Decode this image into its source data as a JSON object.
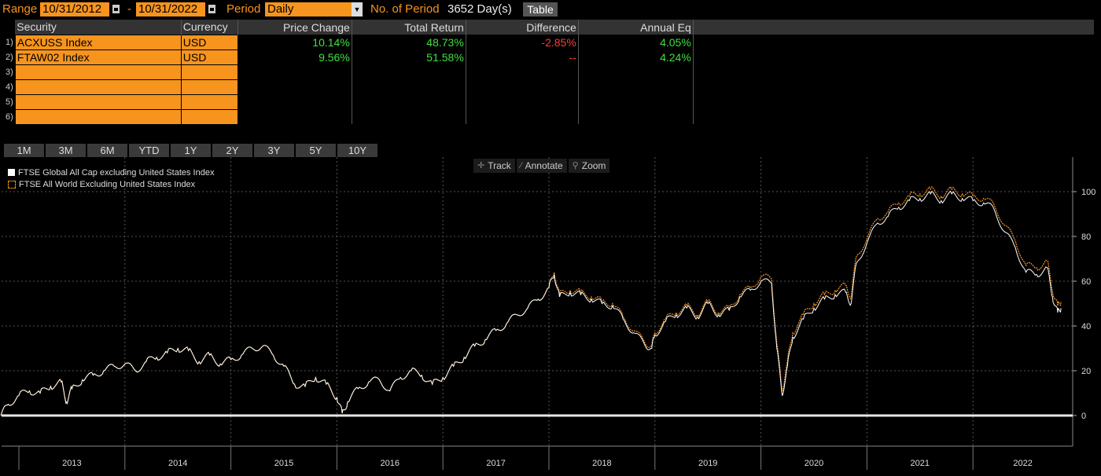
{
  "header": {
    "range_label": "Range",
    "start_date": "10/31/2012",
    "dash": "-",
    "end_date": "10/31/2022",
    "period_label": "Period",
    "period_value": "Daily",
    "num_period_label": "No. of Period",
    "num_period_value": "3652 Day(s)",
    "table_button": "Table"
  },
  "table": {
    "columns": [
      "Security",
      "Currency",
      "Price Change",
      "Total Return",
      "Difference",
      "Annual Eq"
    ],
    "rows": [
      {
        "num": "1)",
        "security": "ACXUSS Index",
        "currency": "USD",
        "price_change": "10.14%",
        "total_return": "48.73%",
        "difference": "-2.85%",
        "annual_eq": "4.05%"
      },
      {
        "num": "2)",
        "security": "FTAW02 Index",
        "currency": "USD",
        "price_change": "9.56%",
        "total_return": "51.58%",
        "difference": "--",
        "annual_eq": "4.24%"
      },
      {
        "num": "3)",
        "security": "",
        "currency": "",
        "price_change": "",
        "total_return": "",
        "difference": "",
        "annual_eq": ""
      },
      {
        "num": "4)",
        "security": "",
        "currency": "",
        "price_change": "",
        "total_return": "",
        "difference": "",
        "annual_eq": ""
      },
      {
        "num": "5)",
        "security": "",
        "currency": "",
        "price_change": "",
        "total_return": "",
        "difference": "",
        "annual_eq": ""
      },
      {
        "num": "6)",
        "security": "",
        "currency": "",
        "price_change": "",
        "total_return": "",
        "difference": "",
        "annual_eq": ""
      }
    ]
  },
  "period_buttons": [
    "1M",
    "3M",
    "6M",
    "YTD",
    "1Y",
    "2Y",
    "3Y",
    "5Y",
    "10Y"
  ],
  "toolbar": {
    "track": "Track",
    "annotate": "Annotate",
    "zoom": "Zoom"
  },
  "colors": {
    "accent": "#f7941d",
    "positive": "#3ee13e",
    "negative": "#ff3a3a",
    "series1": "#ffffff",
    "series2": "#f7941d"
  },
  "chart_data": {
    "type": "line",
    "legend_position": "top-left",
    "grid": true,
    "xlim": [
      2012.83,
      2022.83
    ],
    "ylim": [
      -10,
      110
    ],
    "yticks": [
      0,
      20,
      40,
      60,
      80,
      100
    ],
    "xticks": [
      "2013",
      "2014",
      "2015",
      "2016",
      "2017",
      "2018",
      "2019",
      "2020",
      "2021",
      "2022"
    ],
    "series": [
      {
        "name": "FTSE Global All Cap excluding United States Index",
        "color": "#ffffff",
        "x": [
          2012.83,
          2012.9,
          2013.0,
          2013.1,
          2013.2,
          2013.3,
          2013.4,
          2013.45,
          2013.5,
          2013.6,
          2013.7,
          2013.8,
          2013.9,
          2014.0,
          2014.1,
          2014.2,
          2014.3,
          2014.4,
          2014.5,
          2014.6,
          2014.7,
          2014.8,
          2014.9,
          2015.0,
          2015.1,
          2015.2,
          2015.3,
          2015.4,
          2015.5,
          2015.6,
          2015.7,
          2015.8,
          2015.9,
          2016.0,
          2016.05,
          2016.1,
          2016.2,
          2016.3,
          2016.4,
          2016.5,
          2016.6,
          2016.7,
          2016.8,
          2016.9,
          2017.0,
          2017.1,
          2017.2,
          2017.3,
          2017.4,
          2017.5,
          2017.6,
          2017.7,
          2017.8,
          2017.9,
          2018.0,
          2018.05,
          2018.1,
          2018.2,
          2018.3,
          2018.4,
          2018.5,
          2018.6,
          2018.7,
          2018.8,
          2018.9,
          2018.97,
          2019.0,
          2019.1,
          2019.2,
          2019.3,
          2019.4,
          2019.5,
          2019.6,
          2019.7,
          2019.8,
          2019.9,
          2020.0,
          2020.1,
          2020.15,
          2020.2,
          2020.25,
          2020.3,
          2020.4,
          2020.5,
          2020.6,
          2020.7,
          2020.8,
          2020.85,
          2020.9,
          2021.0,
          2021.1,
          2021.2,
          2021.3,
          2021.4,
          2021.5,
          2021.6,
          2021.7,
          2021.8,
          2021.9,
          2022.0,
          2022.1,
          2022.2,
          2022.3,
          2022.4,
          2022.5,
          2022.6,
          2022.7,
          2022.75,
          2022.8,
          2022.83
        ],
        "y": [
          0,
          5,
          9,
          11,
          10,
          13,
          15,
          6,
          12,
          16,
          18,
          20,
          22,
          23,
          20,
          24,
          26,
          28,
          30,
          29,
          24,
          27,
          23,
          25,
          27,
          30,
          31,
          27,
          22,
          14,
          13,
          17,
          14,
          8,
          1,
          6,
          12,
          15,
          16,
          11,
          17,
          20,
          18,
          14,
          17,
          22,
          26,
          31,
          34,
          38,
          41,
          45,
          48,
          52,
          57,
          63,
          53,
          55,
          54,
          52,
          50,
          49,
          43,
          37,
          32,
          30,
          36,
          42,
          45,
          48,
          44,
          50,
          45,
          47,
          53,
          56,
          60,
          59,
          30,
          9,
          22,
          35,
          43,
          48,
          52,
          54,
          55,
          50,
          68,
          77,
          86,
          89,
          93,
          96,
          97,
          99,
          96,
          99,
          97,
          96,
          95,
          92,
          82,
          75,
          64,
          63,
          66,
          53,
          46,
          48
        ]
      },
      {
        "name": "FTSE All World Excluding United States Index",
        "color": "#f7941d",
        "x": [
          2012.83,
          2012.9,
          2013.0,
          2013.1,
          2013.2,
          2013.3,
          2013.4,
          2013.45,
          2013.5,
          2013.6,
          2013.7,
          2013.8,
          2013.9,
          2014.0,
          2014.1,
          2014.2,
          2014.3,
          2014.4,
          2014.5,
          2014.6,
          2014.7,
          2014.8,
          2014.9,
          2015.0,
          2015.1,
          2015.2,
          2015.3,
          2015.4,
          2015.5,
          2015.6,
          2015.7,
          2015.8,
          2015.9,
          2016.0,
          2016.05,
          2016.1,
          2016.2,
          2016.3,
          2016.4,
          2016.5,
          2016.6,
          2016.7,
          2016.8,
          2016.9,
          2017.0,
          2017.1,
          2017.2,
          2017.3,
          2017.4,
          2017.5,
          2017.6,
          2017.7,
          2017.8,
          2017.9,
          2018.0,
          2018.05,
          2018.1,
          2018.2,
          2018.3,
          2018.4,
          2018.5,
          2018.6,
          2018.7,
          2018.8,
          2018.9,
          2018.97,
          2019.0,
          2019.1,
          2019.2,
          2019.3,
          2019.4,
          2019.5,
          2019.6,
          2019.7,
          2019.8,
          2019.9,
          2020.0,
          2020.1,
          2020.15,
          2020.2,
          2020.25,
          2020.3,
          2020.4,
          2020.5,
          2020.6,
          2020.7,
          2020.8,
          2020.85,
          2020.9,
          2021.0,
          2021.1,
          2021.2,
          2021.3,
          2021.4,
          2021.5,
          2021.6,
          2021.7,
          2021.8,
          2021.9,
          2022.0,
          2022.1,
          2022.2,
          2022.3,
          2022.4,
          2022.5,
          2022.6,
          2022.7,
          2022.75,
          2022.8,
          2022.83
        ],
        "y": [
          0,
          5,
          9,
          11,
          10,
          13,
          15,
          6,
          12,
          16,
          18,
          20,
          22,
          23,
          20,
          24,
          26,
          28,
          30,
          29,
          24,
          27,
          23,
          25,
          27,
          30,
          31,
          27,
          22,
          14,
          13,
          17,
          14,
          8,
          1,
          6,
          12,
          15,
          16,
          11,
          17,
          20,
          18,
          14,
          17,
          22,
          26,
          31,
          34,
          38,
          41,
          45,
          48,
          52,
          57,
          64,
          54,
          56,
          55,
          53,
          51,
          50,
          44,
          38,
          33,
          31,
          37,
          43,
          46,
          49,
          45,
          51,
          46,
          48,
          54,
          57,
          62,
          61,
          32,
          11,
          24,
          37,
          45,
          50,
          54,
          56,
          58,
          53,
          71,
          79,
          88,
          91,
          95,
          98,
          99,
          101,
          98,
          101,
          99,
          98,
          97,
          94,
          85,
          78,
          67,
          66,
          69,
          56,
          49,
          51
        ]
      }
    ]
  }
}
